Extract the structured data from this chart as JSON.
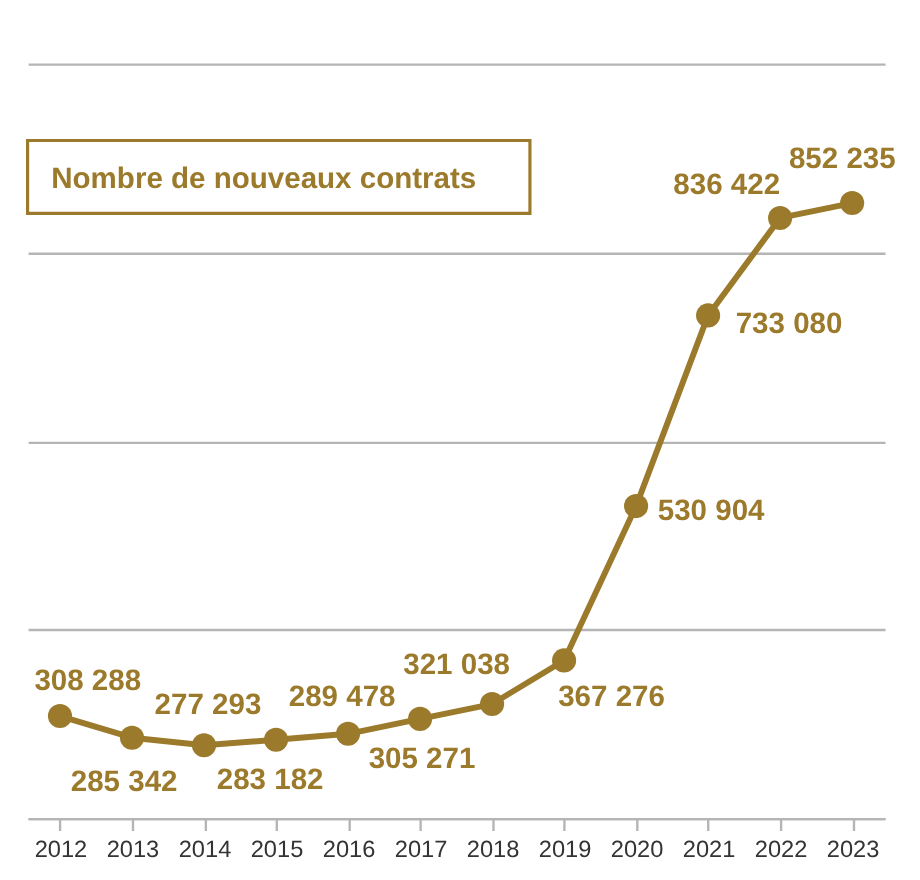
{
  "chart_data": {
    "type": "line",
    "title": "Nombre de nouveaux contrats",
    "categories": [
      "2012",
      "2013",
      "2014",
      "2015",
      "2016",
      "2017",
      "2018",
      "2019",
      "2020",
      "2021",
      "2022",
      "2023"
    ],
    "values": [
      308288,
      285342,
      277293,
      283182,
      289478,
      305271,
      321038,
      367276,
      530904,
      733080,
      836422,
      852235
    ],
    "value_labels": [
      "308 288",
      "285 342",
      "277 293",
      "283 182",
      "289 478",
      "305 271",
      "321 038",
      "367 276",
      "530 904",
      "733 080",
      "836 422",
      "852 235"
    ],
    "color": "#9c7a2c",
    "ylim": [
      200000,
      1000000
    ],
    "yticks": [
      {
        "value": 200000,
        "label": null
      },
      {
        "value": 400000,
        "label": null
      },
      {
        "value": 600000,
        "label": null
      },
      {
        "value": 800000,
        "label": null
      },
      {
        "value": 1000000,
        "label": null
      }
    ],
    "grid": "y",
    "tick_labels": "x",
    "marker": "circle",
    "line_style": "solid"
  }
}
